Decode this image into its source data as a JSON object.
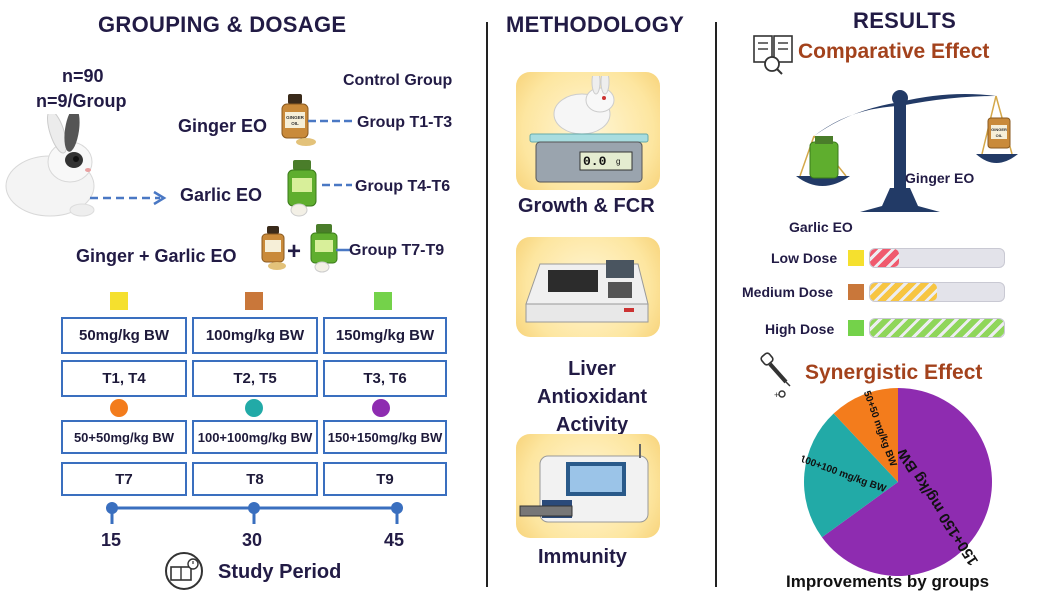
{
  "left": {
    "title": "GROUPING & DOSAGE",
    "n_total": "n=90",
    "n_group": "n=9/Group",
    "control_label": "Control Group",
    "treatments": [
      {
        "name": "Ginger EO",
        "group": "Group T1-T3"
      },
      {
        "name": "Garlic EO",
        "group": "Group T4-T6"
      },
      {
        "name": "Ginger + Garlic EO",
        "group": "Group T7-T9"
      }
    ],
    "bottle_label": "GINGER OIL",
    "plus": "+",
    "dose_colors": [
      "#f5e02e",
      "#c9773a",
      "#74d24a"
    ],
    "combo_colors": [
      "#f37c1c",
      "#22aaa7",
      "#8e2cb0"
    ],
    "doses": [
      "50mg/kg BW",
      "100mg/kg BW",
      "150mg/kg BW"
    ],
    "dose_groups": [
      "T1, T4",
      "T2, T5",
      "T3, T6"
    ],
    "combo_doses": [
      "50+50mg/kg BW",
      "100+100mg/kg BW",
      "150+150mg/kg BW"
    ],
    "combo_groups": [
      "T7",
      "T8",
      "T9"
    ],
    "timeline": [
      "15",
      "30",
      "45"
    ],
    "study_period": "Study Period"
  },
  "middle": {
    "title": "METHODOLOGY",
    "items": [
      "Growth & FCR",
      "Liver Antioxidant Activity",
      "Immunity"
    ],
    "scale_display": "0.0",
    "scale_unit": "g"
  },
  "right": {
    "title": "RESULTS",
    "comparative_title": "Comparative Effect",
    "garlic_label": "Garlic EO",
    "ginger_label": "Ginger EO",
    "bottle_label": "GINGER OIL",
    "doses": [
      {
        "label": "Low Dose",
        "color": "#f5e02e",
        "fill_fraction": 0.22,
        "fill_color": "#f05a6e"
      },
      {
        "label": "Medium Dose",
        "color": "#c9773a",
        "fill_fraction": 0.5,
        "fill_color": "#f7c542"
      },
      {
        "label": "High Dose",
        "color": "#74d24a",
        "fill_fraction": 1.0,
        "fill_color": "#8fd65a"
      }
    ],
    "synergistic_title": "Synergistic Effect",
    "pie_caption": "Improvements by groups"
  },
  "chart_data": {
    "type": "pie",
    "title": "Improvements by groups",
    "slices": [
      {
        "label": "150+150 mg/kg BW",
        "value": 65,
        "color": "#8e2cb0"
      },
      {
        "label": "100+100 mg/kg BW",
        "value": 23,
        "color": "#22aaa7"
      },
      {
        "label": "50+50 mg/kg BW",
        "value": 12,
        "color": "#f37c1c"
      }
    ]
  }
}
